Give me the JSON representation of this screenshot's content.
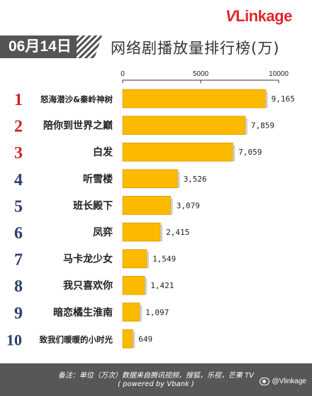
{
  "brand": {
    "logo_v": "V",
    "logo_rest": "Linkage"
  },
  "header": {
    "date": "06月14日",
    "title": "网络剧播放量排行榜(万)"
  },
  "chart_data": {
    "type": "bar",
    "orientation": "horizontal",
    "title": "网络剧播放量排行榜(万)",
    "xlim": [
      0,
      10000
    ],
    "xticks": [
      "0",
      "5000",
      "10000"
    ],
    "ranks": [
      "1",
      "2",
      "3",
      "4",
      "5",
      "6",
      "7",
      "8",
      "9",
      "10"
    ],
    "categories": [
      "怒海潜沙&秦岭神树",
      "陪你到世界之巅",
      "白发",
      "听雪楼",
      "班长殿下",
      "凤弈",
      "马卡龙少女",
      "我只喜欢你",
      "暗恋橘生淮南",
      "致我们暖暖的小时光"
    ],
    "values": [
      9165,
      7859,
      7059,
      3526,
      3079,
      2415,
      1549,
      1421,
      1097,
      649
    ],
    "value_labels": [
      "9,165",
      "7,859",
      "7,059",
      "3,526",
      "3,079",
      "2,415",
      "1,549",
      "1,421",
      "1,097",
      "649"
    ],
    "bar_color": "#fbb900",
    "rank_colors": {
      "top3": "#d11f1f",
      "rest": "#2f3f6e"
    },
    "grid": false
  },
  "footer": {
    "note": "备注：单位（万次）数据来自腾讯视频，搜狐，乐视，芒果 TV",
    "powered": "( powered by Vbank )",
    "weibo_handle": "@Vlinkage"
  }
}
